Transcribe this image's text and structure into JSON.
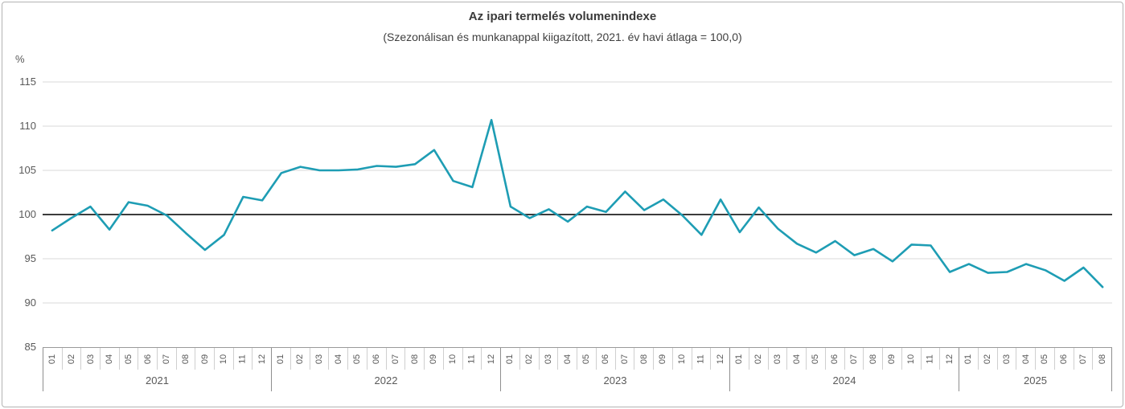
{
  "chart_data": {
    "type": "line",
    "title": "Az ipari termelés volumenindexe",
    "subtitle": "(Szezonálisan és munkanappal kiigazított, 2021. év havi átlaga = 100,0)",
    "unit_label": "%",
    "ylim": [
      85,
      115
    ],
    "yticks": [
      115,
      110,
      105,
      100,
      95,
      90,
      85
    ],
    "baseline": 100,
    "grid": "horizontal",
    "legend": "none",
    "line_color": "#1E9DB4",
    "baseline_color": "#3C3C3C",
    "groups": [
      {
        "year": "2021",
        "months": [
          "01",
          "02",
          "03",
          "04",
          "05",
          "06",
          "07",
          "08",
          "09",
          "10",
          "11",
          "12"
        ],
        "values": [
          98.2,
          99.6,
          100.9,
          98.3,
          101.4,
          101.0,
          99.9,
          97.9,
          96.0,
          97.7,
          102.0,
          101.6
        ]
      },
      {
        "year": "2022",
        "months": [
          "01",
          "02",
          "03",
          "04",
          "05",
          "06",
          "07",
          "08",
          "09",
          "10",
          "11",
          "12"
        ],
        "values": [
          104.7,
          105.4,
          105.0,
          105.0,
          105.1,
          105.5,
          105.4,
          105.7,
          107.3,
          103.8,
          103.1,
          110.7
        ]
      },
      {
        "year": "2023",
        "months": [
          "01",
          "02",
          "03",
          "04",
          "05",
          "06",
          "07",
          "08",
          "09",
          "10",
          "11",
          "12"
        ],
        "values": [
          100.9,
          99.6,
          100.6,
          99.2,
          100.9,
          100.3,
          102.6,
          100.5,
          101.7,
          99.9,
          97.7,
          101.7
        ]
      },
      {
        "year": "2024",
        "months": [
          "01",
          "02",
          "03",
          "04",
          "05",
          "06",
          "07",
          "08",
          "09",
          "10",
          "11",
          "12"
        ],
        "values": [
          98.0,
          100.8,
          98.4,
          96.7,
          95.7,
          97.0,
          95.4,
          96.1,
          94.7,
          96.6,
          96.5,
          93.5
        ]
      },
      {
        "year": "2025",
        "months": [
          "01",
          "02",
          "03",
          "04",
          "05",
          "06",
          "07",
          "08"
        ],
        "values": [
          94.4,
          93.4,
          93.5,
          94.4,
          93.7,
          92.5,
          94.0,
          91.8
        ]
      }
    ]
  }
}
